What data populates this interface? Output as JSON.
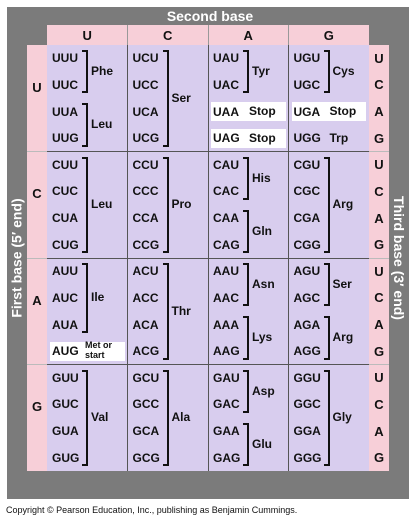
{
  "second_base_title": "Second base",
  "first_base_title": "First base (5′ end)",
  "third_base_title": "Third base (3′ end)",
  "copyright": "Copyright © Pearson Education, Inc., publishing as Benjamin Cummings.",
  "bases": [
    "U",
    "C",
    "A",
    "G"
  ],
  "third_base_column": [
    "U",
    "C",
    "A",
    "G"
  ],
  "colors": {
    "frame": "#7b7b7b",
    "header": "#f7cfd8",
    "cell": "#d8cdee",
    "highlight": "#ffffff"
  },
  "cells": [
    [
      {
        "codons": [
          "UUU",
          "UUC",
          "UUA",
          "UUG"
        ],
        "aas": [
          {
            "name": "Phe",
            "start": 0,
            "end": 1
          },
          {
            "name": "Leu",
            "start": 2,
            "end": 3
          }
        ]
      },
      {
        "codons": [
          "UCU",
          "UCC",
          "UCA",
          "UCG"
        ],
        "aas": [
          {
            "name": "Ser",
            "start": 0,
            "end": 3
          }
        ]
      },
      {
        "codons": [
          "UAU",
          "UAC",
          "UAA",
          "UAG"
        ],
        "aas": [
          {
            "name": "Tyr",
            "start": 0,
            "end": 1
          },
          {
            "name": "Stop",
            "start": 2,
            "end": 2,
            "highlight": true
          },
          {
            "name": "Stop",
            "start": 3,
            "end": 3,
            "highlight": true
          }
        ]
      },
      {
        "codons": [
          "UGU",
          "UGC",
          "UGA",
          "UGG"
        ],
        "aas": [
          {
            "name": "Cys",
            "start": 0,
            "end": 1
          },
          {
            "name": "Stop",
            "start": 2,
            "end": 2,
            "highlight": true
          },
          {
            "name": "Trp",
            "start": 3,
            "end": 3,
            "plain": true
          }
        ]
      }
    ],
    [
      {
        "codons": [
          "CUU",
          "CUC",
          "CUA",
          "CUG"
        ],
        "aas": [
          {
            "name": "Leu",
            "start": 0,
            "end": 3
          }
        ]
      },
      {
        "codons": [
          "CCU",
          "CCC",
          "CCA",
          "CCG"
        ],
        "aas": [
          {
            "name": "Pro",
            "start": 0,
            "end": 3
          }
        ]
      },
      {
        "codons": [
          "CAU",
          "CAC",
          "CAA",
          "CAG"
        ],
        "aas": [
          {
            "name": "His",
            "start": 0,
            "end": 1
          },
          {
            "name": "Gln",
            "start": 2,
            "end": 3
          }
        ]
      },
      {
        "codons": [
          "CGU",
          "CGC",
          "CGA",
          "CGG"
        ],
        "aas": [
          {
            "name": "Arg",
            "start": 0,
            "end": 3
          }
        ]
      }
    ],
    [
      {
        "codons": [
          "AUU",
          "AUC",
          "AUA",
          "AUG"
        ],
        "aas": [
          {
            "name": "Ile",
            "start": 0,
            "end": 2
          },
          {
            "name": "Met or start",
            "start": 3,
            "end": 3,
            "highlight": true,
            "small": true
          }
        ]
      },
      {
        "codons": [
          "ACU",
          "ACC",
          "ACA",
          "ACG"
        ],
        "aas": [
          {
            "name": "Thr",
            "start": 0,
            "end": 3
          }
        ]
      },
      {
        "codons": [
          "AAU",
          "AAC",
          "AAA",
          "AAG"
        ],
        "aas": [
          {
            "name": "Asn",
            "start": 0,
            "end": 1
          },
          {
            "name": "Lys",
            "start": 2,
            "end": 3
          }
        ]
      },
      {
        "codons": [
          "AGU",
          "AGC",
          "AGA",
          "AGG"
        ],
        "aas": [
          {
            "name": "Ser",
            "start": 0,
            "end": 1
          },
          {
            "name": "Arg",
            "start": 2,
            "end": 3
          }
        ]
      }
    ],
    [
      {
        "codons": [
          "GUU",
          "GUC",
          "GUA",
          "GUG"
        ],
        "aas": [
          {
            "name": "Val",
            "start": 0,
            "end": 3
          }
        ]
      },
      {
        "codons": [
          "GCU",
          "GCC",
          "GCA",
          "GCG"
        ],
        "aas": [
          {
            "name": "Ala",
            "start": 0,
            "end": 3
          }
        ]
      },
      {
        "codons": [
          "GAU",
          "GAC",
          "GAA",
          "GAG"
        ],
        "aas": [
          {
            "name": "Asp",
            "start": 0,
            "end": 1
          },
          {
            "name": "Glu",
            "start": 2,
            "end": 3
          }
        ]
      },
      {
        "codons": [
          "GGU",
          "GGC",
          "GGA",
          "GGG"
        ],
        "aas": [
          {
            "name": "Gly",
            "start": 0,
            "end": 3
          }
        ]
      }
    ]
  ]
}
